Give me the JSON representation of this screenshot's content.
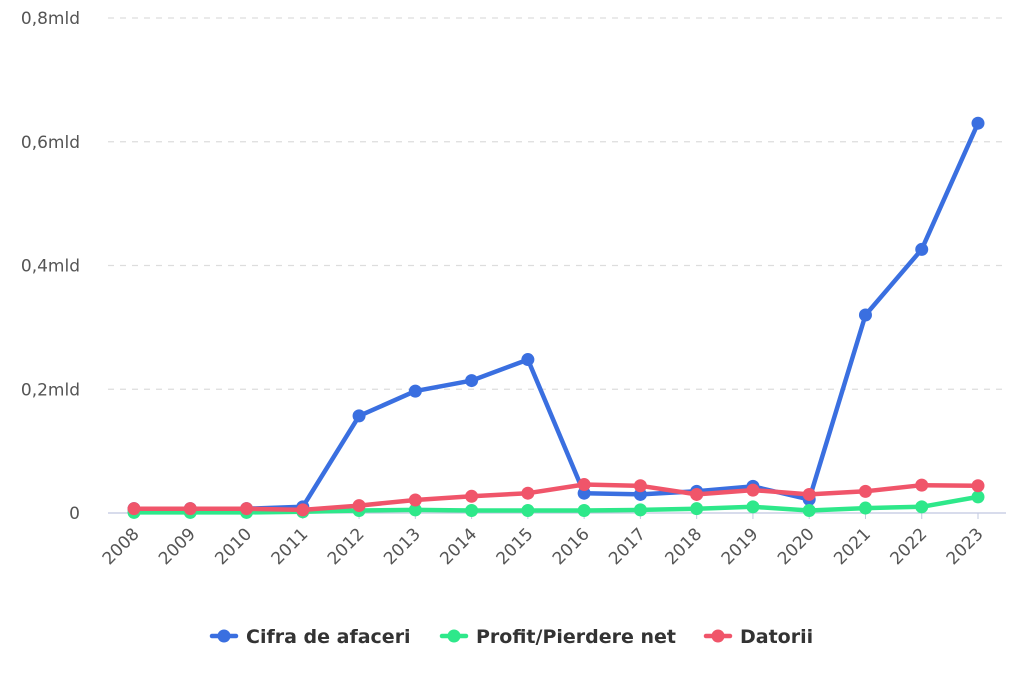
{
  "chart_data": {
    "type": "line",
    "x": [
      "2008",
      "2009",
      "2010",
      "2011",
      "2012",
      "2013",
      "2014",
      "2015",
      "2016",
      "2017",
      "2018",
      "2019",
      "2020",
      "2021",
      "2022",
      "2023"
    ],
    "y_ticks": [
      {
        "value": 0,
        "label": "0"
      },
      {
        "value": 0.2,
        "label": "0,2mld"
      },
      {
        "value": 0.4,
        "label": "0,4mld"
      },
      {
        "value": 0.6,
        "label": "0,6mld"
      },
      {
        "value": 0.8,
        "label": "0,8mld"
      }
    ],
    "ylim": [
      0,
      0.8
    ],
    "grid": true,
    "legend_position": "bottom-center",
    "series": [
      {
        "name": "Cifra de afaceri",
        "color": "#3a6fe0",
        "values": [
          0.007,
          0.007,
          0.007,
          0.01,
          0.157,
          0.197,
          0.214,
          0.248,
          0.032,
          0.03,
          0.035,
          0.043,
          0.022,
          0.32,
          0.426,
          0.63
        ]
      },
      {
        "name": "Profit/Pierdere net",
        "color": "#2ee88a",
        "values": [
          0.001,
          0.001,
          0.001,
          0.002,
          0.004,
          0.005,
          0.004,
          0.004,
          0.004,
          0.005,
          0.007,
          0.01,
          0.004,
          0.008,
          0.01,
          0.026
        ]
      },
      {
        "name": "Datorii",
        "color": "#f0556a",
        "values": [
          0.007,
          0.007,
          0.007,
          0.005,
          0.012,
          0.021,
          0.027,
          0.032,
          0.046,
          0.044,
          0.03,
          0.037,
          0.03,
          0.035,
          0.045,
          0.044
        ]
      }
    ]
  }
}
